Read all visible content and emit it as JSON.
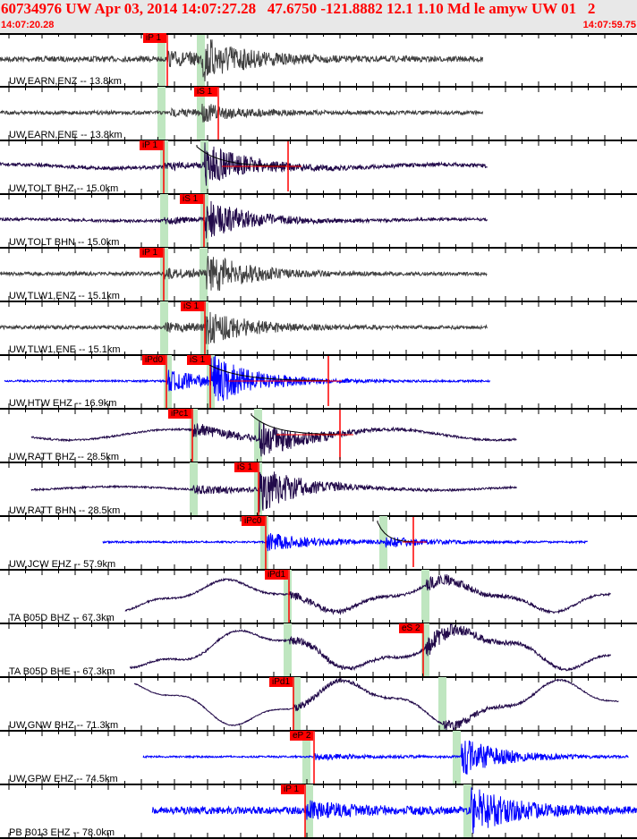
{
  "header": {
    "title": "60734976 UW Apr 03, 2014 14:07:27.28   47.6750 -121.8882 12.1 1.10 Md le amyw UW 01   2",
    "start_time": "14:07:20.28",
    "end_time": "14:07:59.75"
  },
  "colors": {
    "header_bg": "#e8e8e8",
    "header_text": "#ff0000",
    "pick_box": "#ff0000",
    "window": "#bfe6c0",
    "accel": "#404040",
    "broadband": "#220a4a",
    "short_period": "#0000ff"
  },
  "channels": [
    {
      "label": "UW,EARN,ENZ -- 13.8km",
      "picks": [
        "iP 1"
      ]
    },
    {
      "label": "UW,EARN,ENE -- 13.8km",
      "picks": [
        "iS 1"
      ]
    },
    {
      "label": "UW,TOLT BHZ -- 15.0km",
      "picks": [
        "iP 1"
      ]
    },
    {
      "label": "UW,TOLT BHN -- 15.0km",
      "picks": [
        "iS 1"
      ]
    },
    {
      "label": "UW,TLW1,ENZ -- 15.1km",
      "picks": [
        "iP 1"
      ]
    },
    {
      "label": "UW,TLW1,ENE -- 15.1km",
      "picks": [
        "iS 1"
      ]
    },
    {
      "label": "UW,HTW EHZ -- 16.9km",
      "picks": [
        "iPd0",
        "iS 1"
      ]
    },
    {
      "label": "UW,RATT BHZ -- 28.5km",
      "picks": [
        "iPc1"
      ]
    },
    {
      "label": "UW,RATT BHN -- 28.5km",
      "picks": [
        "iS 1"
      ]
    },
    {
      "label": "UW,JCW EHZ -- 57.9km",
      "picks": [
        "iPc0"
      ]
    },
    {
      "label": "TA B05D BHZ -- 67.3km",
      "picks": [
        "iPd1"
      ]
    },
    {
      "label": "TA B05D BHE -- 67.3km",
      "picks": [
        "eS 2"
      ]
    },
    {
      "label": "UW,GNW BHZ -- 71.3km",
      "picks": [
        "iPd1"
      ]
    },
    {
      "label": "UW,GPW EHZ -- 74.5km",
      "picks": [
        "eP 2"
      ]
    },
    {
      "label": "PB B013 EHZ -- 78.0km",
      "picks": [
        "iP 1"
      ]
    }
  ]
}
